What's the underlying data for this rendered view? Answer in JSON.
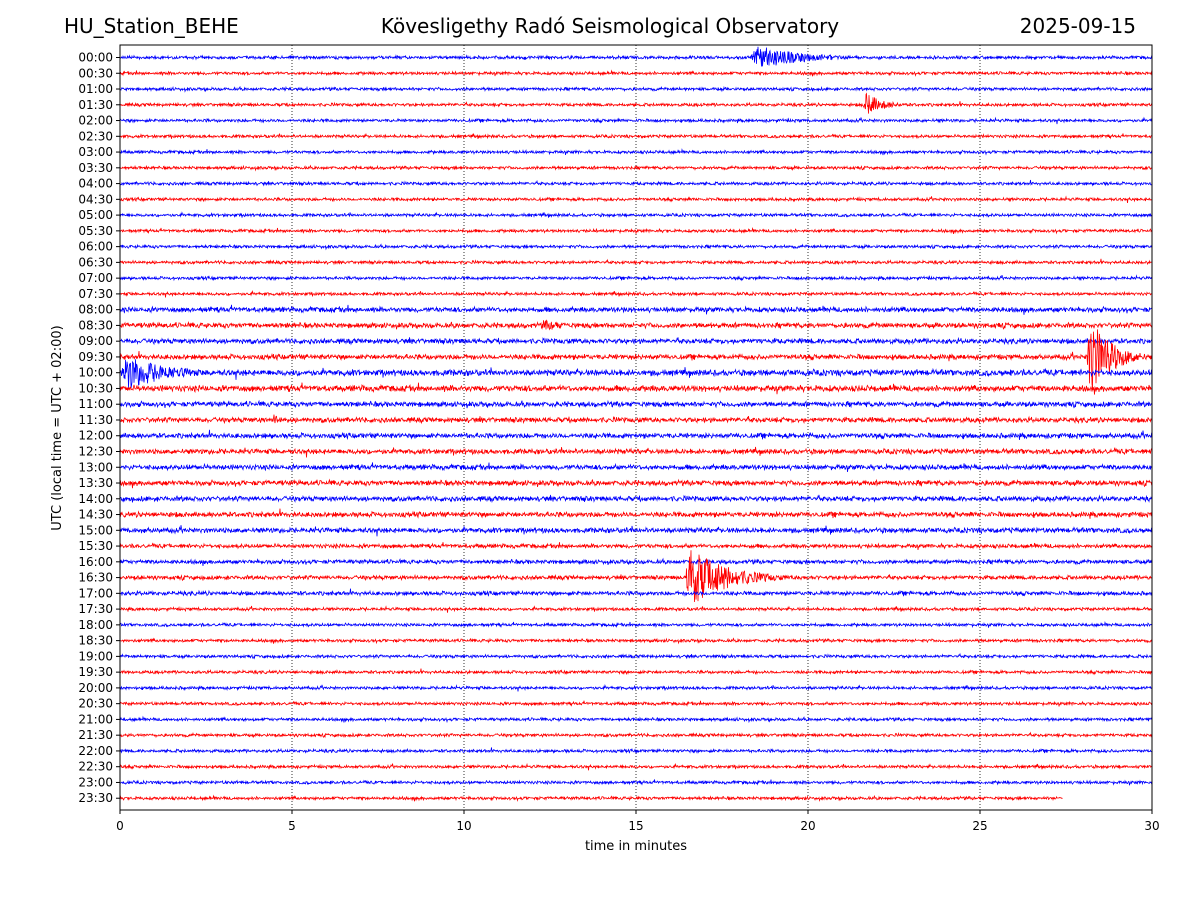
{
  "header": {
    "station": "HU_Station_BEHE",
    "observatory": "Kövesligethy Radó Seismological Observatory",
    "date": "2025-09-15"
  },
  "chart_data": {
    "type": "line",
    "xlabel": "time in minutes",
    "ylabel": "UTC (local time = UTC + 02:00)",
    "xlim": [
      0,
      30
    ],
    "xticks": [
      0,
      5,
      10,
      15,
      20,
      25,
      30
    ],
    "grid": "vertical dotted lines at x ticks",
    "colors": [
      "#0000ff",
      "#ff0000"
    ],
    "rows": [
      "00:00",
      "00:30",
      "01:00",
      "01:30",
      "02:00",
      "02:30",
      "03:00",
      "03:30",
      "04:00",
      "04:30",
      "05:00",
      "05:30",
      "06:00",
      "06:30",
      "07:00",
      "07:30",
      "08:00",
      "08:30",
      "09:00",
      "09:30",
      "10:00",
      "10:30",
      "11:00",
      "11:30",
      "12:00",
      "12:30",
      "13:00",
      "13:30",
      "14:00",
      "14:30",
      "15:00",
      "15:30",
      "16:00",
      "16:30",
      "17:00",
      "17:30",
      "18:00",
      "18:30",
      "19:00",
      "19:30",
      "20:00",
      "20:30",
      "21:00",
      "21:30",
      "22:00",
      "22:30",
      "23:00",
      "23:30"
    ],
    "noise": [
      1.5,
      1.5,
      1.5,
      1.5,
      1.5,
      1.5,
      1.5,
      1.5,
      1.5,
      1.5,
      1.5,
      1.5,
      1.5,
      1.5,
      1.5,
      1.5,
      2.5,
      2.5,
      2.5,
      2.5,
      3,
      3,
      2.5,
      2.5,
      2.5,
      2.5,
      2.5,
      2.5,
      2.5,
      2.5,
      2.5,
      2,
      2,
      2,
      2,
      1.5,
      1.5,
      1.5,
      1.5,
      1.5,
      1.5,
      1.5,
      1.5,
      1.5,
      1.5,
      1.5,
      1.5,
      1.5
    ],
    "last_row_end_minute": 27.4,
    "events": [
      {
        "row": "00:00",
        "start_minute": 18.3,
        "duration_minutes": 4.0,
        "amplitude": 12
      },
      {
        "row": "01:30",
        "start_minute": 21.6,
        "duration_minutes": 1.5,
        "amplitude": 12
      },
      {
        "row": "08:30",
        "start_minute": 12.2,
        "duration_minutes": 2.0,
        "amplitude": 6
      },
      {
        "row": "09:30",
        "start_minute": 28.1,
        "duration_minutes": 1.9,
        "amplitude": 38
      },
      {
        "row": "10:00",
        "start_minute": 0.0,
        "duration_minutes": 3.5,
        "amplitude": 18
      },
      {
        "row": "11:30",
        "start_minute": 4.4,
        "duration_minutes": 1.0,
        "amplitude": 6
      },
      {
        "row": "16:30",
        "start_minute": 16.4,
        "duration_minutes": 3.2,
        "amplitude": 30
      }
    ]
  }
}
